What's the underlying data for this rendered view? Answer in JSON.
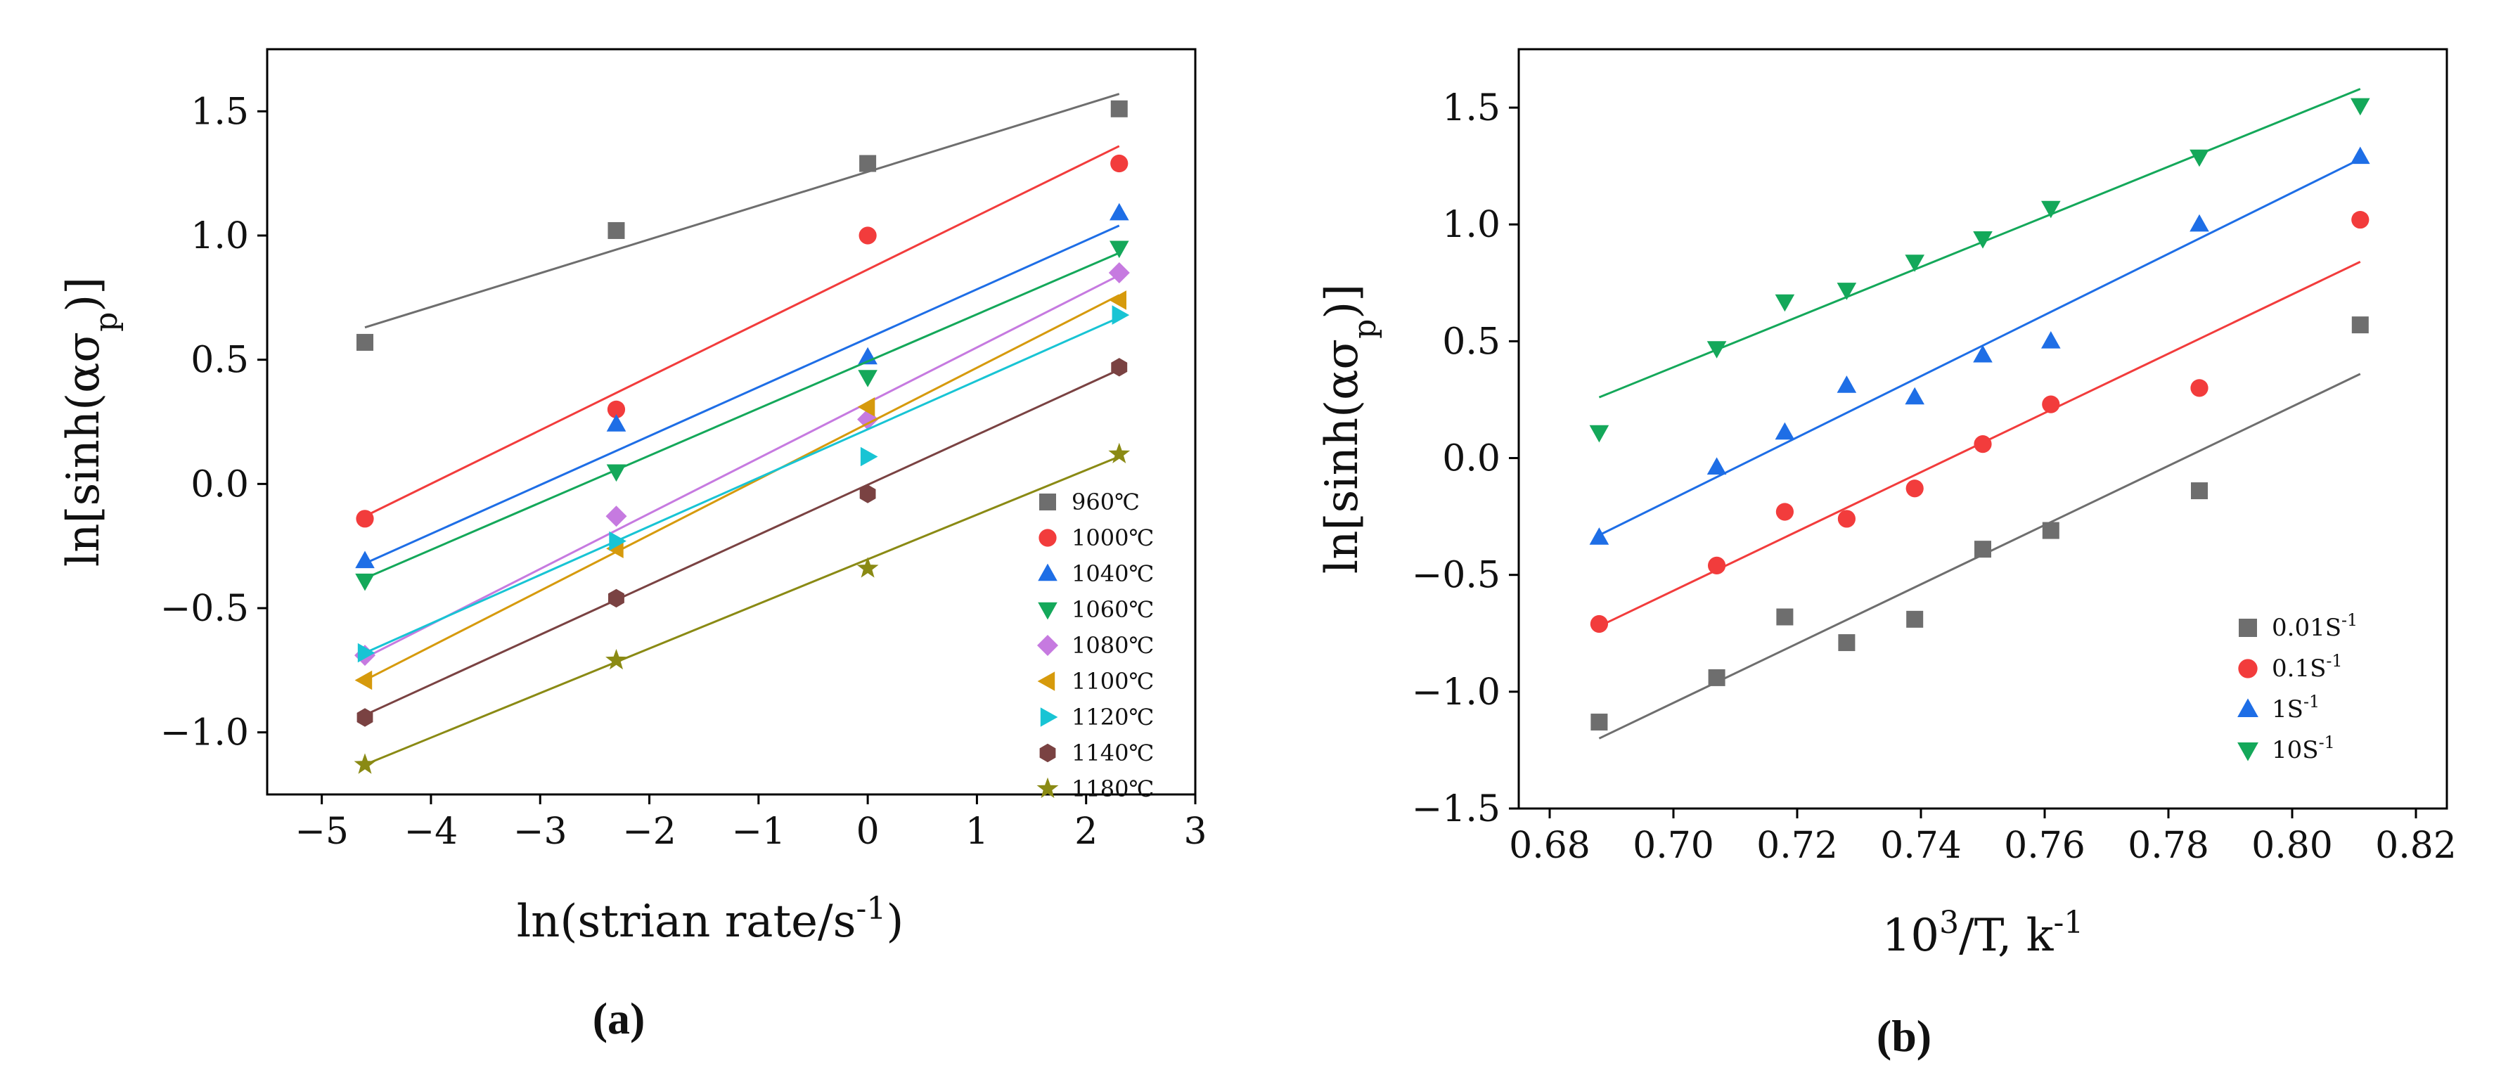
{
  "chart_data": [
    {
      "type": "scatter",
      "panel_label": "(a)",
      "xlabel": "ln(strian rate/s",
      "xlabel_sup": "-1",
      "xlabel_close": ")",
      "ylabel": "ln[sinh(ασ",
      "ylabel_sub": "p",
      "ylabel_close": ")]",
      "xlim": [
        -5.5,
        3
      ],
      "ylim": [
        -1.25,
        1.75
      ],
      "xticks": [
        -5,
        -4,
        -3,
        -2,
        -1,
        0,
        1,
        2,
        3
      ],
      "xtick_labels": [
        "−5",
        "−4",
        "−3",
        "−2",
        "−1",
        "0",
        "1",
        "2",
        "3"
      ],
      "yticks": [
        -1.0,
        -0.5,
        0.0,
        0.5,
        1.0,
        1.5
      ],
      "ytick_labels": [
        "−1.0",
        "−0.5",
        "0.0",
        "0.5",
        "1.0",
        "1.5"
      ],
      "legend": "bottom-right",
      "x": [
        -4.605,
        -2.303,
        0,
        2.303
      ],
      "series": [
        {
          "name": "960℃",
          "marker": "square",
          "color": "#6e6e6e",
          "values": [
            0.57,
            1.02,
            1.29,
            1.51
          ],
          "fit": [
            0.63,
            1.57
          ]
        },
        {
          "name": "1000℃",
          "marker": "circle",
          "color": "#f23c3c",
          "values": [
            -0.14,
            0.3,
            1.0,
            1.29
          ],
          "fit": [
            -0.13,
            1.36
          ]
        },
        {
          "name": "1040℃",
          "marker": "triangle-up",
          "color": "#1e6ee6",
          "values": [
            -0.31,
            0.24,
            0.51,
            1.09
          ],
          "fit": [
            -0.32,
            1.04
          ]
        },
        {
          "name": "1060℃",
          "marker": "triangle-down",
          "color": "#14a85a",
          "values": [
            -0.39,
            0.05,
            0.43,
            0.95
          ],
          "fit": [
            -0.38,
            0.93
          ]
        },
        {
          "name": "1080℃",
          "marker": "diamond",
          "color": "#c67ae0",
          "values": [
            -0.69,
            -0.13,
            0.26,
            0.85
          ],
          "fit": [
            -0.7,
            0.84
          ]
        },
        {
          "name": "1100℃",
          "marker": "triangle-left",
          "color": "#d69a0c",
          "values": [
            -0.79,
            -0.26,
            0.31,
            0.74
          ],
          "fit": [
            -0.79,
            0.76
          ]
        },
        {
          "name": "1120℃",
          "marker": "triangle-right",
          "color": "#18c4d4",
          "values": [
            -0.68,
            -0.23,
            0.11,
            0.68
          ],
          "fit": [
            -0.68,
            0.67
          ]
        },
        {
          "name": "1140℃",
          "marker": "hexagon",
          "color": "#7a4242",
          "values": [
            -0.94,
            -0.46,
            -0.04,
            0.47
          ],
          "fit": [
            -0.93,
            0.46
          ]
        },
        {
          "name": "1180℃",
          "marker": "star",
          "color": "#8a8a14",
          "values": [
            -1.13,
            -0.71,
            -0.34,
            0.12
          ],
          "fit": [
            -1.13,
            0.11
          ]
        }
      ]
    },
    {
      "type": "scatter",
      "panel_label": "(b)",
      "xlabel": "10",
      "xlabel_sup": "3",
      "xlabel_tail": "/T, k",
      "xlabel_sup2": "-1",
      "ylabel": "ln[sinh(ασ",
      "ylabel_sub": "p",
      "ylabel_close": ")]",
      "xlim": [
        0.675,
        0.825
      ],
      "ylim": [
        -1.5,
        1.75
      ],
      "xticks": [
        0.68,
        0.7,
        0.72,
        0.74,
        0.76,
        0.78,
        0.8,
        0.82
      ],
      "xtick_labels": [
        "0.68",
        "0.70",
        "0.72",
        "0.74",
        "0.76",
        "0.78",
        "0.80",
        "0.82"
      ],
      "yticks": [
        -1.5,
        -1.0,
        -0.5,
        0.0,
        0.5,
        1.0,
        1.5
      ],
      "ytick_labels": [
        "−1.5",
        "−1.0",
        "−0.5",
        "0.0",
        "0.5",
        "1.0",
        "1.5"
      ],
      "legend": "bottom-right",
      "x": [
        0.688,
        0.707,
        0.718,
        0.728,
        0.739,
        0.75,
        0.761,
        0.785,
        0.811
      ],
      "series": [
        {
          "name": "0.01S",
          "name_sup": "-1",
          "marker": "square",
          "color": "#6e6e6e",
          "values": [
            -1.13,
            -0.94,
            -0.68,
            -0.79,
            -0.69,
            -0.39,
            -0.31,
            -0.14,
            0.57
          ],
          "fit": [
            -1.2,
            0.36
          ]
        },
        {
          "name": "0.1S",
          "name_sup": "-1",
          "marker": "circle",
          "color": "#f23c3c",
          "values": [
            -0.71,
            -0.46,
            -0.23,
            -0.26,
            -0.13,
            0.06,
            0.23,
            0.3,
            1.02
          ],
          "fit": [
            -0.72,
            0.84
          ]
        },
        {
          "name": "1S",
          "name_sup": "-1",
          "marker": "triangle-up",
          "color": "#1e6ee6",
          "values": [
            -0.34,
            -0.04,
            0.11,
            0.31,
            0.26,
            0.44,
            0.5,
            1.0,
            1.29
          ],
          "fit": [
            -0.33,
            1.28
          ]
        },
        {
          "name": "10S",
          "name_sup": "-1",
          "marker": "triangle-down",
          "color": "#14a85a",
          "values": [
            0.11,
            0.47,
            0.67,
            0.72,
            0.84,
            0.94,
            1.07,
            1.29,
            1.51
          ],
          "fit": [
            0.26,
            1.58
          ]
        }
      ]
    }
  ]
}
